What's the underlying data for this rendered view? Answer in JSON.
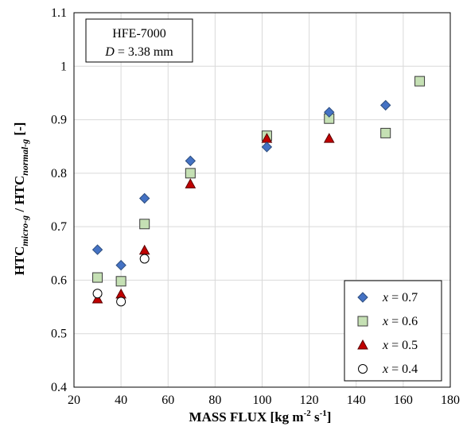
{
  "chart_data": {
    "type": "scatter",
    "xlabel": "MASS FLUX [kg m-2 s-1]",
    "xlabel_parts": {
      "main": "MASS FLUX [kg m",
      "exp1": "-2",
      "mid": " s",
      "exp2": "-1",
      "end": "]"
    },
    "ylabel": "HTCmicro-g / HTCnormal-g [-]",
    "ylabel_parts": {
      "a": "HTC",
      "sub_a": "micro-g",
      "sep": " / HTC",
      "sub_b": "normal-g",
      "unit": " [-]"
    },
    "xlim": [
      20,
      180
    ],
    "ylim": [
      0.4,
      1.1
    ],
    "x_ticks": [
      20,
      40,
      60,
      80,
      100,
      120,
      140,
      160,
      180
    ],
    "y_ticks": [
      "0.4",
      "0.5",
      "0.6",
      "0.7",
      "0.8",
      "0.9",
      "1",
      "1.1"
    ],
    "grid": true,
    "legend_position": "bottom-right",
    "annotation": {
      "line1": "HFE-7000",
      "line2_var": "D",
      "line2_rest": " = 3.38 mm"
    },
    "series": [
      {
        "name": "x = 0.7",
        "var": "x",
        "rest": " = 0.7",
        "marker": "diamond",
        "color": "#4472c4",
        "stroke": "#2f4f7f",
        "points": [
          [
            30,
            0.657
          ],
          [
            40,
            0.628
          ],
          [
            50,
            0.753
          ],
          [
            69.5,
            0.823
          ],
          [
            102,
            0.849
          ],
          [
            128.5,
            0.914
          ],
          [
            152.5,
            0.927
          ]
        ]
      },
      {
        "name": "x = 0.6",
        "var": "x",
        "rest": " = 0.6",
        "marker": "square",
        "color": "#c5e0b4",
        "stroke": "#3a3a3a",
        "points": [
          [
            30,
            0.605
          ],
          [
            40,
            0.598
          ],
          [
            50,
            0.705
          ],
          [
            69.5,
            0.8
          ],
          [
            102,
            0.87
          ],
          [
            128.5,
            0.902
          ],
          [
            152.5,
            0.875
          ],
          [
            167,
            0.972
          ]
        ]
      },
      {
        "name": "x = 0.5",
        "var": "x",
        "rest": " = 0.5",
        "marker": "triangle",
        "color": "#c00000",
        "stroke": "#5a0000",
        "points": [
          [
            30,
            0.565
          ],
          [
            40,
            0.574
          ],
          [
            50,
            0.656
          ],
          [
            69.5,
            0.78
          ],
          [
            102,
            0.865
          ],
          [
            128.5,
            0.865
          ]
        ]
      },
      {
        "name": "x = 0.4",
        "var": "x",
        "rest": " = 0.4",
        "marker": "circle",
        "color": "#ffffff",
        "stroke": "#000000",
        "points": [
          [
            30,
            0.575
          ],
          [
            40,
            0.56
          ],
          [
            50,
            0.64
          ]
        ]
      }
    ]
  }
}
